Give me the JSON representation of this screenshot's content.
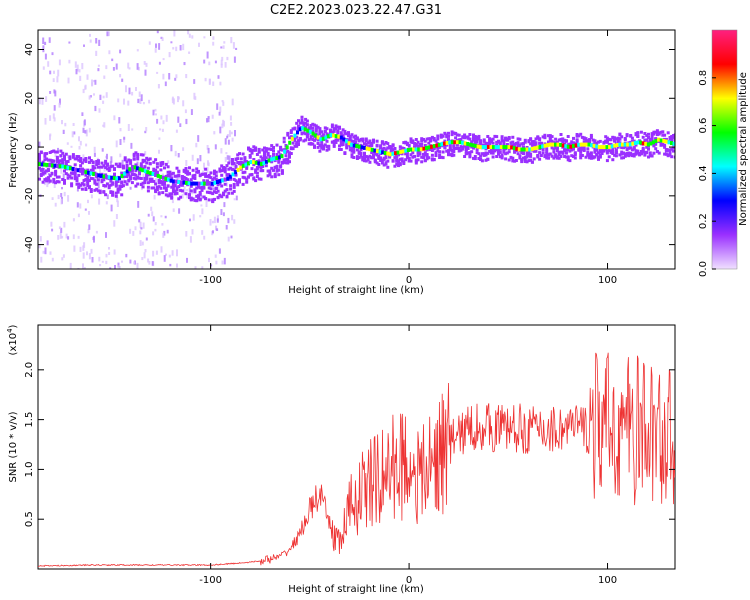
{
  "title": "C2E2.2023.023.22.47.G31",
  "chart_data": [
    {
      "type": "heatmap",
      "panel": "spectrogram",
      "xlabel": "Height of straight line (km)",
      "ylabel": "Frequency (Hz)",
      "xlim": [
        -187,
        134
      ],
      "ylim": [
        -50,
        48
      ],
      "xticks": [
        -100,
        0,
        100
      ],
      "xtick_labels": [
        "-100",
        "0",
        "100"
      ],
      "yticks": [
        -40,
        -20,
        0,
        20,
        40
      ],
      "ytick_labels": [
        "-40",
        "-20",
        "0",
        "20",
        "40"
      ],
      "colorbar": {
        "label": "Normalized spectral amplitude",
        "range": [
          0,
          1
        ],
        "ticks": [
          0.0,
          0.2,
          0.4,
          0.6,
          0.8
        ],
        "tick_labels": [
          "0.0",
          "0.2",
          "0.4",
          "0.6",
          "0.8"
        ],
        "colors": [
          "#f0e0ff",
          "#9a30ff",
          "#0000ff",
          "#00ffff",
          "#00ff00",
          "#ffff00",
          "#ff0000",
          "#ff2080"
        ]
      },
      "ridge": {
        "x": [
          -187,
          -175,
          -165,
          -155,
          -147,
          -140,
          -130,
          -120,
          -110,
          -100,
          -92,
          -85,
          -80,
          -75,
          -70,
          -65,
          -60,
          -55,
          -50,
          -45,
          -40,
          -35,
          -30,
          -25,
          -20,
          -15,
          -10,
          -5,
          0,
          5,
          10,
          15,
          20,
          25,
          30,
          35,
          40,
          45,
          50,
          55,
          60,
          65,
          70,
          75,
          80,
          85,
          90,
          95,
          100,
          105,
          110,
          115,
          120,
          125,
          130,
          134
        ],
        "frequency": [
          -7,
          -8,
          -10,
          -12,
          -13,
          -8,
          -11,
          -14,
          -15,
          -15,
          -13,
          -8,
          -6,
          -7,
          -5,
          -4,
          3,
          8,
          6,
          3,
          5,
          4,
          1,
          0,
          -1,
          -2,
          -3,
          -2,
          -1,
          -1,
          0,
          1,
          2,
          2,
          1,
          0,
          0,
          0,
          0,
          -1,
          -1,
          0,
          1,
          1,
          0,
          1,
          1,
          0,
          0,
          1,
          1,
          2,
          1,
          3,
          2,
          1
        ]
      }
    },
    {
      "type": "line",
      "panel": "snr",
      "xlabel": "Height of straight line (km)",
      "ylabel": "SNR (10 * v/v)",
      "y_multiplier_label": "(x10",
      "y_multiplier_exp": "4",
      "xlim": [
        -187,
        134
      ],
      "ylim": [
        0,
        2.45
      ],
      "xticks": [
        -100,
        0,
        100
      ],
      "xtick_labels": [
        "-100",
        "0",
        "100"
      ],
      "yticks": [
        0.5,
        1.0,
        1.5,
        2.0
      ],
      "ytick_labels": [
        "0.5",
        "1.0",
        "1.5",
        "2.0"
      ],
      "series": [
        {
          "color": "#ee3333",
          "x": [
            -187,
            -160,
            -130,
            -100,
            -85,
            -75,
            -65,
            -60,
            -55,
            -50,
            -45,
            -40,
            -35,
            -30,
            -25,
            -20,
            -15,
            -10,
            -5,
            0,
            5,
            10,
            15,
            20,
            25,
            30,
            35,
            40,
            50,
            60,
            70,
            80,
            90,
            100,
            110,
            115,
            120,
            125,
            130,
            134
          ],
          "values": [
            0.03,
            0.04,
            0.04,
            0.04,
            0.06,
            0.08,
            0.12,
            0.2,
            0.35,
            0.6,
            0.75,
            0.45,
            0.25,
            0.6,
            0.75,
            0.85,
            0.9,
            1.0,
            1.05,
            1.1,
            0.9,
            1.0,
            1.15,
            1.25,
            1.35,
            1.4,
            1.45,
            1.42,
            1.42,
            1.4,
            1.4,
            1.42,
            1.42,
            1.42,
            1.4,
            1.4,
            1.38,
            1.35,
            1.3,
            1.35
          ]
        }
      ]
    }
  ]
}
